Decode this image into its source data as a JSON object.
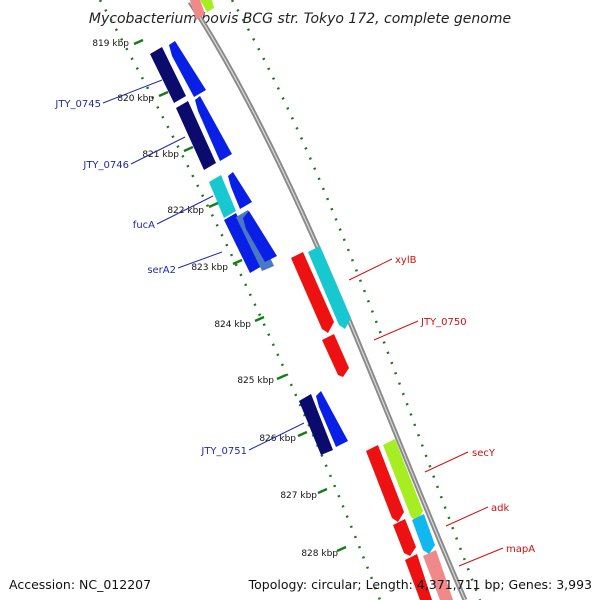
{
  "title": "Mycobacterium bovis BCG str. Tokyo 172, complete genome",
  "accession": "Accession: NC_012207",
  "topology": "Topology: circular; Length: 4,371,711 bp; Genes: 3,993",
  "colors": {
    "backbone": "#8a8a8a",
    "ticks": "#1a7a1a",
    "navy": "#0b0b6e",
    "blue": "#0a1fe6",
    "teal": "#18c8d0",
    "red": "#ee1111",
    "lime": "#a6ee22",
    "cyan": "#11b8f0",
    "pink": "#f08a8a",
    "label_blue": "#1f2aa8",
    "label_red": "#cc1111"
  },
  "kbp_labels": [
    "819 kbp",
    "820 kbp",
    "821 kbp",
    "822 kbp",
    "823 kbp",
    "824 kbp",
    "825 kbp",
    "826 kbp",
    "827 kbp",
    "828 kbp"
  ],
  "gene_labels": [
    {
      "text": "JTY_0745",
      "color": "label_blue"
    },
    {
      "text": "JTY_0746",
      "color": "label_blue"
    },
    {
      "text": "fucA",
      "color": "label_blue"
    },
    {
      "text": "serA2",
      "color": "label_blue"
    },
    {
      "text": "JTY_0751",
      "color": "label_blue"
    },
    {
      "text": "xylB",
      "color": "label_red"
    },
    {
      "text": "JTY_0750",
      "color": "label_red"
    },
    {
      "text": "secY",
      "color": "label_red"
    },
    {
      "text": "adk",
      "color": "label_red"
    },
    {
      "text": "mapA",
      "color": "label_red"
    }
  ]
}
